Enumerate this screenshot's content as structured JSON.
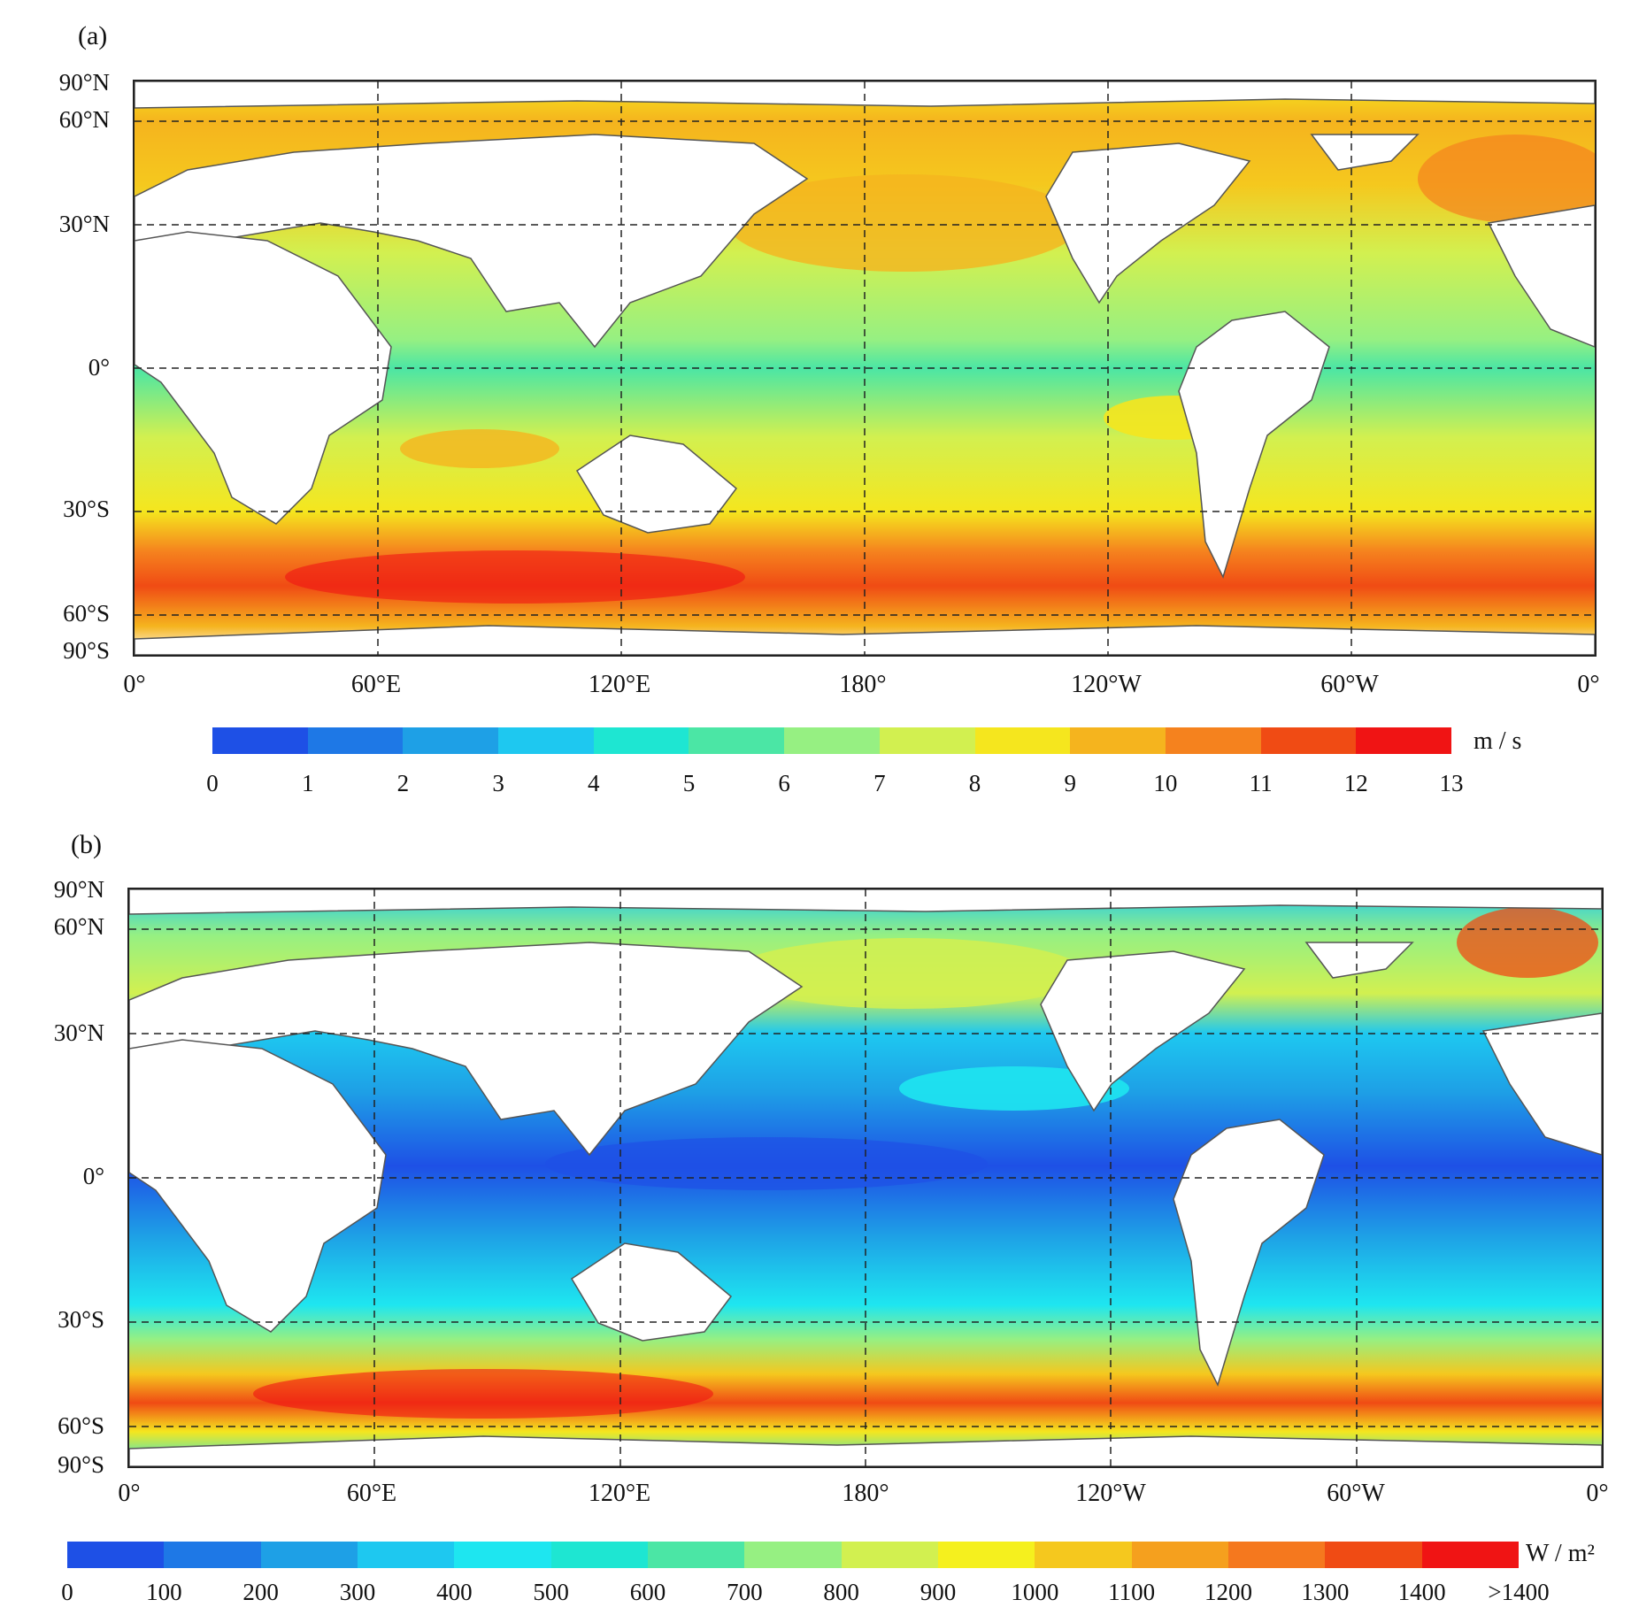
{
  "panels": [
    {
      "label": "(a)",
      "lat_labels": [
        "90°N",
        "60°N",
        "30°N",
        "0°",
        "30°S",
        "60°S",
        "90°S"
      ],
      "lon_labels": [
        "0°",
        "60°E",
        "120°E",
        "180°",
        "120°W",
        "60°W",
        "0°"
      ],
      "colorbar": {
        "unit": "m / s",
        "ticks": [
          "0",
          "1",
          "2",
          "3",
          "4",
          "5",
          "6",
          "7",
          "8",
          "9",
          "10",
          "11",
          "12",
          "13"
        ],
        "colors": [
          "#1e50e6",
          "#1e78e6",
          "#1ea0e6",
          "#1ec8f0",
          "#1ee6d2",
          "#4be6a5",
          "#96f082",
          "#d2f050",
          "#f5e61e",
          "#f5b41e",
          "#f5821e",
          "#f04b14",
          "#f01414"
        ]
      }
    },
    {
      "label": "(b)",
      "lat_labels": [
        "90°N",
        "60°N",
        "30°N",
        "0°",
        "30°S",
        "60°S",
        "90°S"
      ],
      "lon_labels": [
        "0°",
        "60°E",
        "120°E",
        "180°",
        "120°W",
        "60°W",
        "0°"
      ],
      "colorbar": {
        "unit": "W / m²",
        "ticks": [
          "0",
          "100",
          "200",
          "300",
          "400",
          "500",
          "600",
          "700",
          "800",
          "900",
          "1000",
          "1100",
          "1200",
          "1300",
          "1400",
          ">1400"
        ],
        "colors": [
          "#1e50e6",
          "#1e78e6",
          "#1ea0e6",
          "#1ec8f0",
          "#1ee6f0",
          "#1ee6d2",
          "#4be6a5",
          "#96f082",
          "#d2f050",
          "#f5f01e",
          "#f5c81e",
          "#f5a01e",
          "#f5781e",
          "#f04b14",
          "#f01414"
        ]
      }
    }
  ]
}
